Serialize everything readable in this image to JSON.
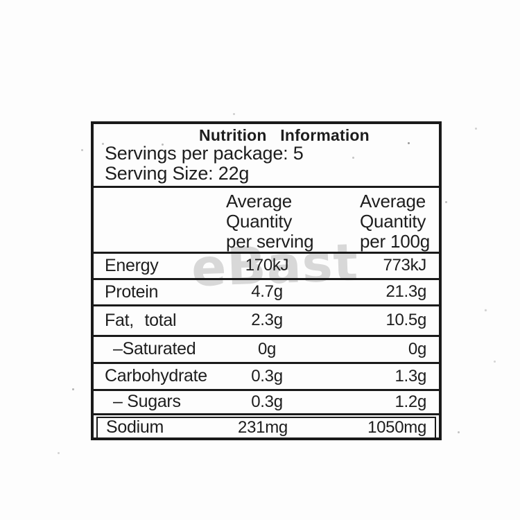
{
  "watermark_text": "eBast",
  "label": {
    "title": "Nutrition  Information",
    "servings_per_package": "Servings per package: 5",
    "serving_size": "Serving Size: 22g",
    "columns": {
      "serving": {
        "line1": "Average",
        "line2": "Quantity",
        "line3": "per serving"
      },
      "per100g": {
        "line1": "Average",
        "line2": "Quantity",
        "line3": "per 100g"
      }
    },
    "rows": [
      {
        "nutrient": "Energy",
        "per_serving": "170kJ",
        "per_100g": "773kJ"
      },
      {
        "nutrient": "Protein",
        "per_serving": "4.7g",
        "per_100g": "21.3g"
      },
      {
        "nutrient": "Fat, total",
        "per_serving": "2.3g",
        "per_100g": "10.5g"
      },
      {
        "nutrient": "–Saturated",
        "per_serving": "0g",
        "per_100g": "0g"
      },
      {
        "nutrient": "Carbohydrate",
        "per_serving": "0.3g",
        "per_100g": "1.3g"
      },
      {
        "nutrient": "– Sugars",
        "per_serving": "0.3g",
        "per_100g": "1.2g"
      },
      {
        "nutrient": "Sodium",
        "per_serving": "231mg",
        "per_100g": "1050mg"
      }
    ]
  },
  "colors": {
    "border": "#1a1a1a",
    "text": "#1d1d1d",
    "watermark": "#d8d8d8",
    "background": "#fdfdfd"
  }
}
